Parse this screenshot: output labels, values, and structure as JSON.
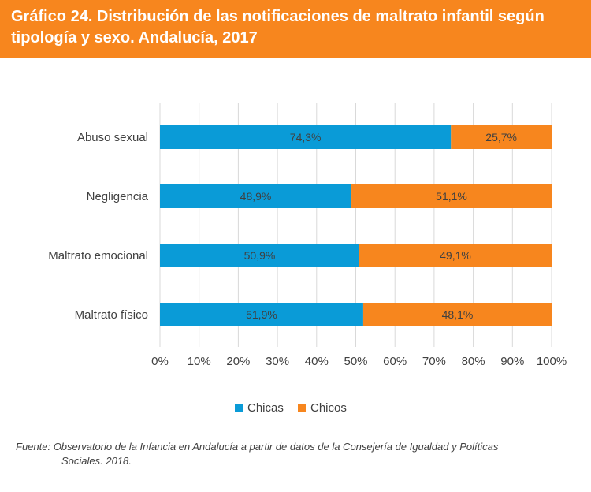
{
  "header": {
    "title": "Gráfico 24. Distribución de las notificaciones de maltrato infantil según tipología y sexo. Andalucía, 2017"
  },
  "colors": {
    "header_bg": "#f7861e",
    "chicas": "#0a9bd7",
    "chicos": "#f7861e",
    "grid": "#d9d9d9",
    "text": "#404040"
  },
  "chart_data": {
    "type": "bar",
    "orientation": "horizontal",
    "stacked": true,
    "title": "Gráfico 24. Distribución de las notificaciones de maltrato infantil según tipología y sexo. Andalucía, 2017",
    "categories": [
      "Abuso sexual",
      "Negligencia",
      "Maltrato emocional",
      "Maltrato físico"
    ],
    "series": [
      {
        "name": "Chicas",
        "color": "#0a9bd7",
        "values": [
          74.3,
          48.9,
          50.9,
          51.9
        ],
        "labels": [
          "74,3%",
          "48,9%",
          "50,9%",
          "51,9%"
        ]
      },
      {
        "name": "Chicos",
        "color": "#f7861e",
        "values": [
          25.7,
          51.1,
          49.1,
          48.1
        ],
        "labels": [
          "25,7%",
          "51,1%",
          "49,1%",
          "48,1%"
        ]
      }
    ],
    "xlim": [
      0,
      100
    ],
    "xticks": [
      "0%",
      "10%",
      "20%",
      "30%",
      "40%",
      "50%",
      "60%",
      "70%",
      "80%",
      "90%",
      "100%"
    ],
    "xlabel": "",
    "ylabel": "",
    "grid": "vertical",
    "legend": "bottom"
  },
  "source": {
    "line1": "Fuente: Observatorio de la Infancia en Andalucía a partir de datos de la Consejería de Igualdad y Políticas",
    "line2": "Sociales. 2018."
  }
}
